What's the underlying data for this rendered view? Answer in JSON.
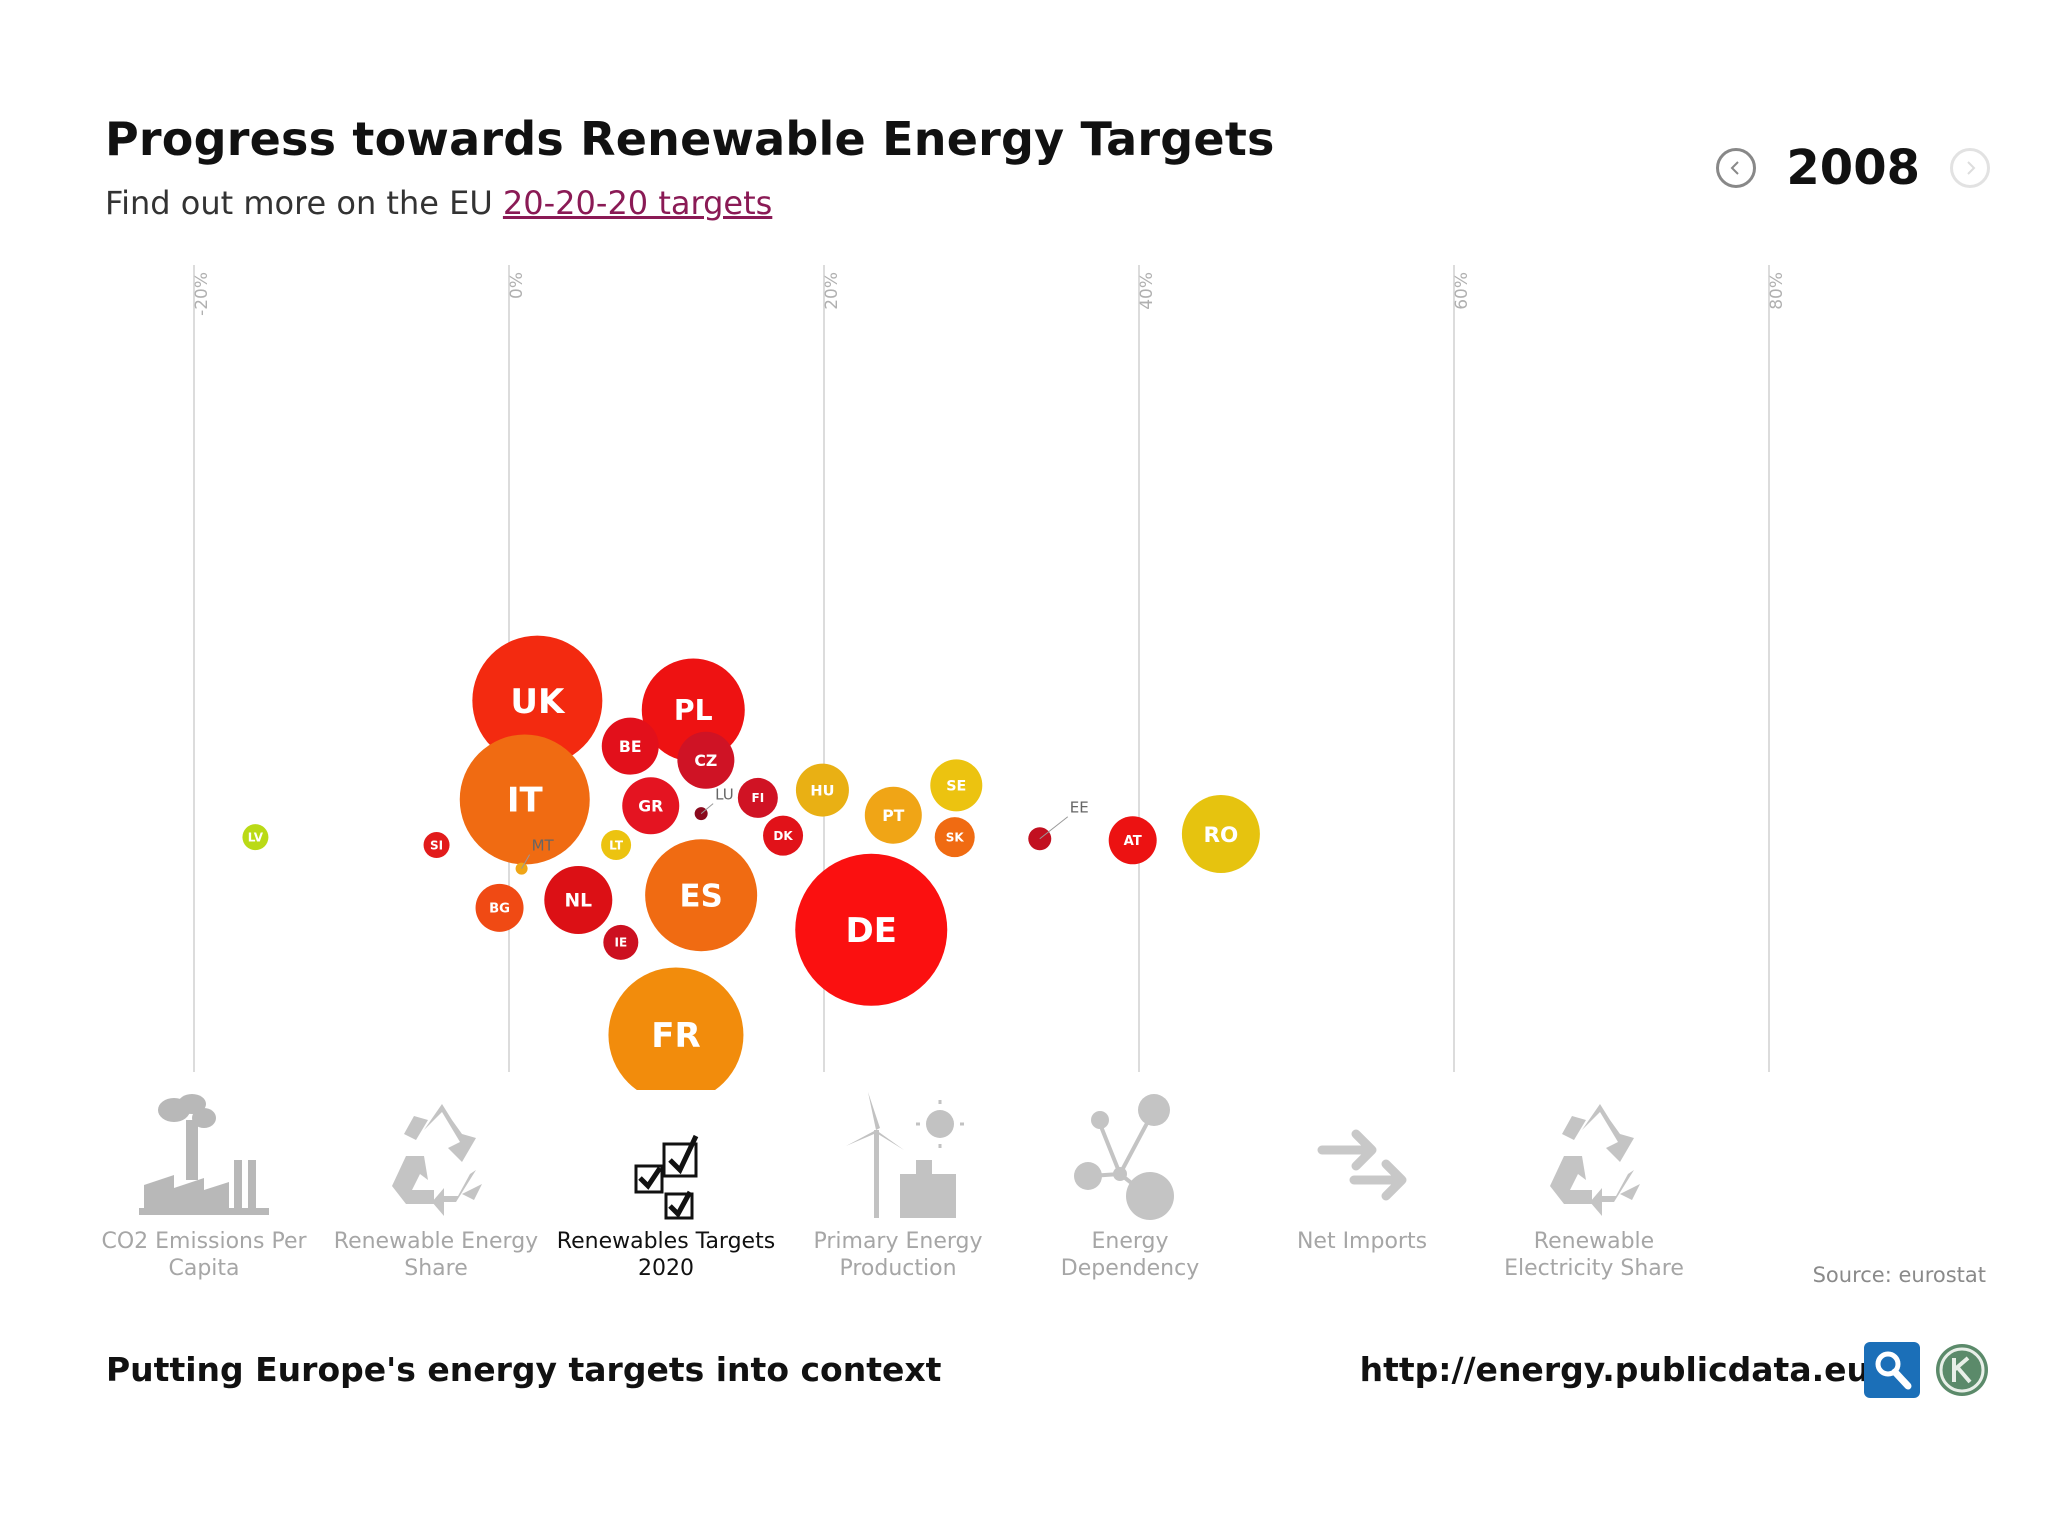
{
  "header": {
    "title": "Progress towards Renewable Energy Targets",
    "subtitle_prefix": "Find out more on the EU",
    "subtitle_link": "20-20-20 targets"
  },
  "year_nav": {
    "year": "2008",
    "prev_icon": "chevron-left-icon",
    "next_icon": "chevron-right-icon"
  },
  "chart_data": {
    "type": "bubble",
    "x_ticks": [
      "-20%",
      "0%",
      "20%",
      "40%",
      "60%",
      "80%"
    ],
    "x_tick_values": [
      -20,
      0,
      20,
      40,
      60,
      80
    ],
    "xlim": [
      -20,
      80
    ],
    "countries": [
      {
        "code": "UK",
        "x": 1.8,
        "y": 0.6,
        "size": 130,
        "color": "#f32a10"
      },
      {
        "code": "PL",
        "x": 11.7,
        "y": 0.0,
        "size": 103,
        "color": "#ee1212"
      },
      {
        "code": "BE",
        "x": 7.7,
        "y": -2.3,
        "size": 57,
        "color": "#e2101b"
      },
      {
        "code": "CZ",
        "x": 12.5,
        "y": -3.2,
        "size": 57,
        "color": "#cf1325"
      },
      {
        "code": "IT",
        "x": 1.0,
        "y": -5.7,
        "size": 130,
        "color": "#f06b12"
      },
      {
        "code": "GR",
        "x": 9.0,
        "y": -6.1,
        "size": 57,
        "color": "#e41421"
      },
      {
        "code": "FI",
        "x": 15.8,
        "y": -5.6,
        "size": 40,
        "color": "#d01324"
      },
      {
        "code": "HU",
        "x": 19.9,
        "y": -5.1,
        "size": 53,
        "color": "#e9b014"
      },
      {
        "code": "SE",
        "x": 28.4,
        "y": -4.8,
        "size": 52,
        "color": "#ecc310"
      },
      {
        "code": "PT",
        "x": 24.4,
        "y": -6.7,
        "size": 57,
        "color": "#f0a516"
      },
      {
        "code": "LU",
        "x": 12.2,
        "y": -6.6,
        "size": 13,
        "color": "#8b0a1e"
      },
      {
        "code": "LV",
        "x": -16.1,
        "y": -8.1,
        "size": 26,
        "color": "#bada16"
      },
      {
        "code": "SI",
        "x": -4.6,
        "y": -8.6,
        "size": 26,
        "color": "#e21b1b"
      },
      {
        "code": "LT",
        "x": 6.8,
        "y": -8.6,
        "size": 30,
        "color": "#ecc310"
      },
      {
        "code": "DK",
        "x": 17.4,
        "y": -8.0,
        "size": 40,
        "color": "#e11219"
      },
      {
        "code": "SK",
        "x": 28.3,
        "y": -8.1,
        "size": 40,
        "color": "#f06b12"
      },
      {
        "code": "EE",
        "x": 33.7,
        "y": -8.2,
        "size": 23,
        "color": "#c21020"
      },
      {
        "code": "AT",
        "x": 39.6,
        "y": -8.3,
        "size": 48,
        "color": "#ec1212"
      },
      {
        "code": "RO",
        "x": 45.2,
        "y": -7.9,
        "size": 78,
        "color": "#e6c30f"
      },
      {
        "code": "MT",
        "x": 0.8,
        "y": -10.1,
        "size": 12,
        "color": "#f0a516"
      },
      {
        "code": "NL",
        "x": 4.4,
        "y": -12.1,
        "size": 68,
        "color": "#dc1015"
      },
      {
        "code": "ES",
        "x": 12.2,
        "y": -11.8,
        "size": 112,
        "color": "#f06b12"
      },
      {
        "code": "BG",
        "x": -0.6,
        "y": -12.6,
        "size": 48,
        "color": "#f04a14"
      },
      {
        "code": "IE",
        "x": 7.1,
        "y": -14.8,
        "size": 35,
        "color": "#cc1020"
      },
      {
        "code": "DE",
        "x": 23.0,
        "y": -14.0,
        "size": 152,
        "color": "#fb1010"
      },
      {
        "code": "FR",
        "x": 10.6,
        "y": -20.7,
        "size": 135,
        "color": "#f28c0c"
      }
    ]
  },
  "tabs": [
    {
      "label": "CO2 Emissions Per Capita",
      "icon": "factory-icon",
      "active": false
    },
    {
      "label": "Renewable Energy Share",
      "icon": "recycle-icon",
      "active": false
    },
    {
      "label": "Renewables Targets 2020",
      "icon": "checkbox-icon",
      "active": true
    },
    {
      "label": "Primary Energy Production",
      "icon": "wind-turbine-icon",
      "active": false
    },
    {
      "label": "Energy Dependency",
      "icon": "network-icon",
      "active": false
    },
    {
      "label": "Net Imports",
      "icon": "arrows-icon",
      "active": false
    },
    {
      "label": "Renewable Electricity Share",
      "icon": "recycle-icon",
      "active": false
    }
  ],
  "source": "Source: eurostat",
  "footer": {
    "tagline": "Putting Europe's energy targets into context",
    "url": "http://energy.publicdata.eu"
  }
}
